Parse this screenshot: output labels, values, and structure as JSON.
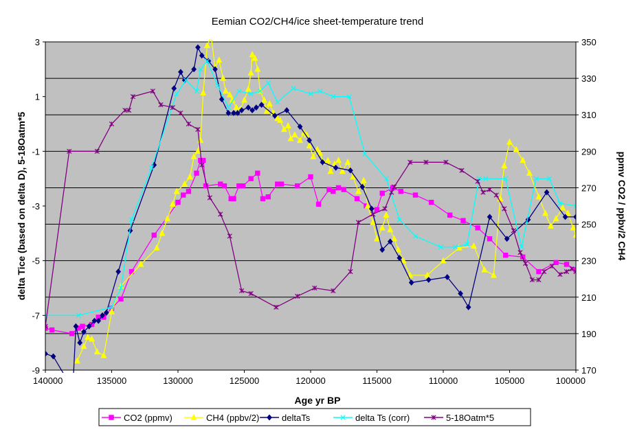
{
  "chart_data": {
    "type": "line",
    "title": "Eemian CO2/CH4/ice sheet-temperature trend",
    "xlabel": "Age yr BP",
    "ylabel_left": "delta Tice (based on delta D), 5-18Oatm*5",
    "ylabel_right": "ppmv CO2 / ppbv/2 CH4",
    "xlim": [
      140000,
      100000
    ],
    "x_reversed": true,
    "ylim_left": [
      -9,
      3
    ],
    "ylim_right": [
      170,
      350
    ],
    "x_ticks": [
      "140000",
      "135000",
      "130000",
      "125000",
      "120000",
      "115000",
      "110000",
      "105000",
      "100000"
    ],
    "y_ticks_left": [
      "3",
      "1",
      "-1",
      "-3",
      "-5",
      "-7",
      "-9"
    ],
    "y_ticks_right": [
      "350",
      "330",
      "310",
      "290",
      "270",
      "250",
      "230",
      "210",
      "190",
      "170"
    ],
    "grid": "horizontal",
    "plot_background": "#c0c0c0",
    "legend_position": "bottom",
    "series": [
      {
        "name": "CO2 (ppmv)",
        "axis": "right",
        "color": "#ff00ff",
        "marker": "square",
        "points": [
          [
            140000,
            193
          ],
          [
            139500,
            192
          ],
          [
            138000,
            190
          ],
          [
            137500,
            193
          ],
          [
            137200,
            194
          ],
          [
            136500,
            195
          ],
          [
            136000,
            199
          ],
          [
            135600,
            199
          ],
          [
            135000,
            204
          ],
          [
            134300,
            209
          ],
          [
            133500,
            224
          ],
          [
            131800,
            244
          ],
          [
            130000,
            262
          ],
          [
            129600,
            266
          ],
          [
            129200,
            268
          ],
          [
            128600,
            278
          ],
          [
            128300,
            285
          ],
          [
            128100,
            285
          ],
          [
            127900,
            271
          ],
          [
            126800,
            272
          ],
          [
            126500,
            271
          ],
          [
            126000,
            264
          ],
          [
            125800,
            264
          ],
          [
            125400,
            271
          ],
          [
            125100,
            271
          ],
          [
            124500,
            275
          ],
          [
            124000,
            278
          ],
          [
            123600,
            264
          ],
          [
            123200,
            265
          ],
          [
            122500,
            272
          ],
          [
            122200,
            272
          ],
          [
            121000,
            271
          ],
          [
            120000,
            276
          ],
          [
            119400,
            261
          ],
          [
            118600,
            269
          ],
          [
            118300,
            268
          ],
          [
            117900,
            270
          ],
          [
            117500,
            269
          ],
          [
            116500,
            264
          ],
          [
            115800,
            260
          ],
          [
            115000,
            258
          ],
          [
            114600,
            267
          ],
          [
            113800,
            270
          ],
          [
            113200,
            268
          ],
          [
            112100,
            266
          ],
          [
            110900,
            262
          ],
          [
            109500,
            255
          ],
          [
            108500,
            252
          ],
          [
            107400,
            248
          ],
          [
            106500,
            242
          ],
          [
            105300,
            233
          ],
          [
            104000,
            232
          ],
          [
            102800,
            224
          ],
          [
            101500,
            229
          ],
          [
            100700,
            228
          ],
          [
            100000,
            225
          ]
        ]
      },
      {
        "name": "CH4 (ppbv/2)",
        "axis": "right",
        "color": "#ffff00",
        "marker": "triangle",
        "points": [
          [
            137600,
            175
          ],
          [
            137100,
            183
          ],
          [
            136800,
            188
          ],
          [
            136500,
            187
          ],
          [
            136100,
            180
          ],
          [
            135600,
            178
          ],
          [
            135000,
            202
          ],
          [
            134300,
            216
          ],
          [
            132800,
            228
          ],
          [
            131600,
            237
          ],
          [
            131200,
            245
          ],
          [
            130800,
            253
          ],
          [
            130400,
            261
          ],
          [
            130100,
            268
          ],
          [
            129500,
            272
          ],
          [
            129100,
            276
          ],
          [
            128800,
            287
          ],
          [
            128500,
            290
          ],
          [
            128300,
            296
          ],
          [
            128100,
            322
          ],
          [
            127800,
            348
          ],
          [
            127500,
            353
          ],
          [
            127200,
            336
          ],
          [
            126900,
            340
          ],
          [
            126600,
            330
          ],
          [
            126400,
            323
          ],
          [
            126100,
            321
          ],
          [
            125900,
            318
          ],
          [
            125600,
            314
          ],
          [
            125300,
            313
          ],
          [
            125000,
            318
          ],
          [
            124700,
            324
          ],
          [
            124500,
            333
          ],
          [
            124400,
            343
          ],
          [
            124200,
            341
          ],
          [
            124000,
            335
          ],
          [
            123800,
            323
          ],
          [
            123500,
            318
          ],
          [
            123300,
            312
          ],
          [
            123100,
            316
          ],
          [
            122800,
            311
          ],
          [
            122500,
            308
          ],
          [
            122300,
            307
          ],
          [
            122000,
            302
          ],
          [
            121700,
            304
          ],
          [
            121500,
            297
          ],
          [
            121200,
            299
          ],
          [
            120800,
            296
          ],
          [
            120500,
            300
          ],
          [
            120300,
            299
          ],
          [
            120100,
            293
          ],
          [
            119800,
            287
          ],
          [
            119500,
            291
          ],
          [
            119300,
            289
          ],
          [
            119000,
            284
          ],
          [
            118700,
            285
          ],
          [
            118500,
            279
          ],
          [
            118200,
            283
          ],
          [
            117900,
            285
          ],
          [
            117600,
            279
          ],
          [
            117200,
            284
          ],
          [
            116800,
            276
          ],
          [
            116400,
            268
          ],
          [
            116000,
            274
          ],
          [
            115700,
            260
          ],
          [
            115300,
            251
          ],
          [
            115000,
            242
          ],
          [
            114600,
            248
          ],
          [
            114300,
            255
          ],
          [
            114000,
            247
          ],
          [
            113700,
            242
          ],
          [
            113400,
            236
          ],
          [
            113000,
            230
          ],
          [
            112500,
            222
          ],
          [
            111200,
            222
          ],
          [
            110000,
            230
          ],
          [
            108800,
            237
          ],
          [
            107700,
            238
          ],
          [
            106900,
            225
          ],
          [
            106200,
            222
          ],
          [
            105700,
            264
          ],
          [
            105400,
            282
          ],
          [
            105000,
            295
          ],
          [
            104500,
            291
          ],
          [
            104000,
            285
          ],
          [
            103500,
            278
          ],
          [
            102800,
            265
          ],
          [
            102300,
            256
          ],
          [
            101900,
            249
          ],
          [
            101500,
            253
          ],
          [
            101000,
            259
          ],
          [
            100600,
            256
          ],
          [
            100200,
            248
          ],
          [
            100000,
            244
          ]
        ]
      },
      {
        "name": "deltaTs",
        "axis": "left",
        "color": "#000080",
        "marker": "diamond",
        "points": [
          [
            140000,
            -8.4
          ],
          [
            139400,
            -8.5
          ],
          [
            138300,
            -9.4
          ],
          [
            137900,
            -9.4
          ],
          [
            137700,
            -7.4
          ],
          [
            137400,
            -8
          ],
          [
            137100,
            -7.6
          ],
          [
            136700,
            -7.4
          ],
          [
            136300,
            -7.2
          ],
          [
            136000,
            -7.2
          ],
          [
            135700,
            -7.0
          ],
          [
            135400,
            -6.9
          ],
          [
            134500,
            -5.4
          ],
          [
            133600,
            -3.9
          ],
          [
            131800,
            -1.5
          ],
          [
            130300,
            1.3
          ],
          [
            129800,
            1.9
          ],
          [
            129500,
            1.6
          ],
          [
            128800,
            2.0
          ],
          [
            128500,
            2.8
          ],
          [
            128200,
            2.5
          ],
          [
            127700,
            2.3
          ],
          [
            127200,
            2.0
          ],
          [
            126700,
            0.9
          ],
          [
            126200,
            0.4
          ],
          [
            125800,
            0.4
          ],
          [
            125500,
            0.4
          ],
          [
            125200,
            0.5
          ],
          [
            124700,
            0.6
          ],
          [
            124400,
            0.5
          ],
          [
            124100,
            0.6
          ],
          [
            123700,
            0.7
          ],
          [
            122700,
            0.3
          ],
          [
            121800,
            0.5
          ],
          [
            120800,
            -0.1
          ],
          [
            120100,
            -0.6
          ],
          [
            119100,
            -1.4
          ],
          [
            118100,
            -1.6
          ],
          [
            117000,
            -1.7
          ],
          [
            116100,
            -2.3
          ],
          [
            115400,
            -3.1
          ],
          [
            114600,
            -4.6
          ],
          [
            114000,
            -4.3
          ],
          [
            113300,
            -4.9
          ],
          [
            112400,
            -5.8
          ],
          [
            111100,
            -5.7
          ],
          [
            109700,
            -5.6
          ],
          [
            108700,
            -6.2
          ],
          [
            108100,
            -6.7
          ],
          [
            106500,
            -3.4
          ],
          [
            105200,
            -4.2
          ],
          [
            103600,
            -3.5
          ],
          [
            102200,
            -2.5
          ],
          [
            100800,
            -3.4
          ],
          [
            100000,
            -3.4
          ]
        ]
      },
      {
        "name": "delta Ts (corr)",
        "axis": "left",
        "color": "#00ffff",
        "marker": "x",
        "points": [
          [
            140000,
            -7.0
          ],
          [
            137500,
            -7.0
          ],
          [
            135000,
            -6.7
          ],
          [
            134300,
            -6.0
          ],
          [
            133500,
            -3.5
          ],
          [
            132000,
            -1.6
          ],
          [
            130100,
            1.1
          ],
          [
            129400,
            1.6
          ],
          [
            128600,
            1.2
          ],
          [
            128300,
            2.0
          ],
          [
            127800,
            2.3
          ],
          [
            127000,
            1.4
          ],
          [
            126200,
            0.6
          ],
          [
            125400,
            1.2
          ],
          [
            124500,
            1.1
          ],
          [
            123800,
            1.2
          ],
          [
            123200,
            1.5
          ],
          [
            122500,
            0.8
          ],
          [
            121300,
            1.3
          ],
          [
            120000,
            1.1
          ],
          [
            119300,
            1.2
          ],
          [
            118300,
            1.0
          ],
          [
            117100,
            1.0
          ],
          [
            115900,
            -1.1
          ],
          [
            114300,
            -2.0
          ],
          [
            113300,
            -3.5
          ],
          [
            112100,
            -4.1
          ],
          [
            110200,
            -4.5
          ],
          [
            109100,
            -4.5
          ],
          [
            108200,
            -4.4
          ],
          [
            107300,
            -2.0
          ],
          [
            106800,
            -2.0
          ],
          [
            105300,
            -2.0
          ],
          [
            104100,
            -4.5
          ],
          [
            103000,
            -2.0
          ],
          [
            102000,
            -2.0
          ],
          [
            101200,
            -2.9
          ],
          [
            100000,
            -3.0
          ]
        ]
      },
      {
        "name": "5-18Oatm*5",
        "axis": "left",
        "color": "#800080",
        "marker": "star",
        "points": [
          [
            140000,
            -7.4
          ],
          [
            138200,
            -1.0
          ],
          [
            136100,
            -1.0
          ],
          [
            135000,
            0.0
          ],
          [
            134000,
            0.5
          ],
          [
            133700,
            0.5
          ],
          [
            133400,
            1.0
          ],
          [
            131900,
            1.2
          ],
          [
            131300,
            0.7
          ],
          [
            130400,
            0.6
          ],
          [
            129800,
            0.4
          ],
          [
            129200,
            0.0
          ],
          [
            128500,
            -0.2
          ],
          [
            128200,
            -1.5
          ],
          [
            127600,
            -2.7
          ],
          [
            126800,
            -3.3
          ],
          [
            126100,
            -4.1
          ],
          [
            125200,
            -6.1
          ],
          [
            124500,
            -6.2
          ],
          [
            122600,
            -6.7
          ],
          [
            121000,
            -6.3
          ],
          [
            119700,
            -6.0
          ],
          [
            118300,
            -6.1
          ],
          [
            117000,
            -5.4
          ],
          [
            116400,
            -3.6
          ],
          [
            115300,
            -3.3
          ],
          [
            114400,
            -3.1
          ],
          [
            113900,
            -2.5
          ],
          [
            113700,
            -2.3
          ],
          [
            112500,
            -1.4
          ],
          [
            111300,
            -1.4
          ],
          [
            109800,
            -1.4
          ],
          [
            108600,
            -1.7
          ],
          [
            107400,
            -2.1
          ],
          [
            107000,
            -2.5
          ],
          [
            106500,
            -2.4
          ],
          [
            106000,
            -2.6
          ],
          [
            105400,
            -3.1
          ],
          [
            104700,
            -3.9
          ],
          [
            104200,
            -4.7
          ],
          [
            103800,
            -5.1
          ],
          [
            103300,
            -5.7
          ],
          [
            102800,
            -5.7
          ],
          [
            102400,
            -5.4
          ],
          [
            101800,
            -5.2
          ],
          [
            101200,
            -5.5
          ],
          [
            100700,
            -5.4
          ],
          [
            100300,
            -5.3
          ],
          [
            100000,
            -5.4
          ]
        ]
      }
    ]
  }
}
